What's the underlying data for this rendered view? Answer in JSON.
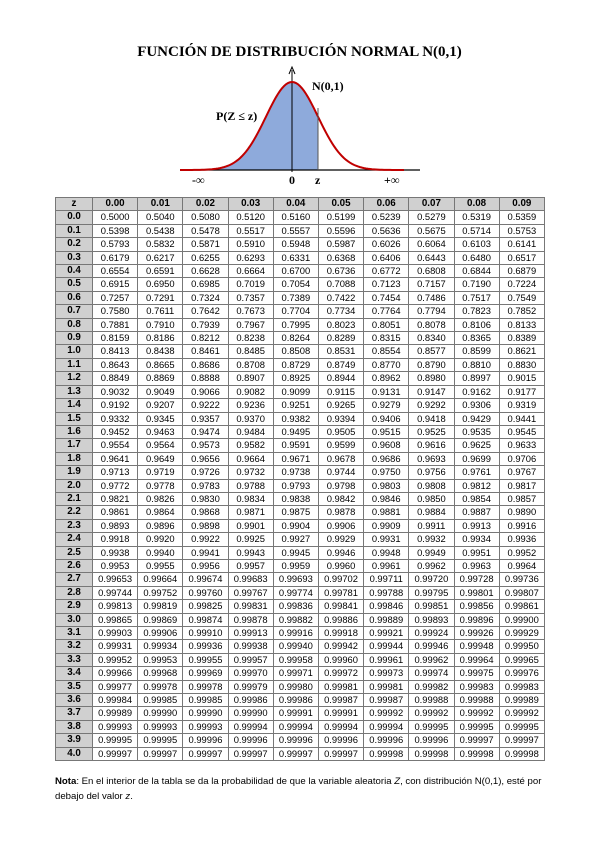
{
  "title": "FUNCIÓN DE DISTRIBUCIÓN NORMAL N(0,1)",
  "figure": {
    "curve_label": "N(0,1)",
    "area_label": "P(Z ≤ z)",
    "minus_inf": "-∞",
    "zero": "0",
    "z": "z",
    "plus_inf": "+∞"
  },
  "table": {
    "header": [
      "z",
      "0.00",
      "0.01",
      "0.02",
      "0.03",
      "0.04",
      "0.05",
      "0.06",
      "0.07",
      "0.08",
      "0.09"
    ],
    "rows": [
      [
        "0.0",
        "0.5000",
        "0.5040",
        "0.5080",
        "0.5120",
        "0.5160",
        "0.5199",
        "0.5239",
        "0.5279",
        "0.5319",
        "0.5359"
      ],
      [
        "0.1",
        "0.5398",
        "0.5438",
        "0.5478",
        "0.5517",
        "0.5557",
        "0.5596",
        "0.5636",
        "0.5675",
        "0.5714",
        "0.5753"
      ],
      [
        "0.2",
        "0.5793",
        "0.5832",
        "0.5871",
        "0.5910",
        "0.5948",
        "0.5987",
        "0.6026",
        "0.6064",
        "0.6103",
        "0.6141"
      ],
      [
        "0.3",
        "0.6179",
        "0.6217",
        "0.6255",
        "0.6293",
        "0.6331",
        "0.6368",
        "0.6406",
        "0.6443",
        "0.6480",
        "0.6517"
      ],
      [
        "0.4",
        "0.6554",
        "0.6591",
        "0.6628",
        "0.6664",
        "0.6700",
        "0.6736",
        "0.6772",
        "0.6808",
        "0.6844",
        "0.6879"
      ],
      [
        "0.5",
        "0.6915",
        "0.6950",
        "0.6985",
        "0.7019",
        "0.7054",
        "0.7088",
        "0.7123",
        "0.7157",
        "0.7190",
        "0.7224"
      ],
      [
        "0.6",
        "0.7257",
        "0.7291",
        "0.7324",
        "0.7357",
        "0.7389",
        "0.7422",
        "0.7454",
        "0.7486",
        "0.7517",
        "0.7549"
      ],
      [
        "0.7",
        "0.7580",
        "0.7611",
        "0.7642",
        "0.7673",
        "0.7704",
        "0.7734",
        "0.7764",
        "0.7794",
        "0.7823",
        "0.7852"
      ],
      [
        "0.8",
        "0.7881",
        "0.7910",
        "0.7939",
        "0.7967",
        "0.7995",
        "0.8023",
        "0.8051",
        "0.8078",
        "0.8106",
        "0.8133"
      ],
      [
        "0.9",
        "0.8159",
        "0.8186",
        "0.8212",
        "0.8238",
        "0.8264",
        "0.8289",
        "0.8315",
        "0.8340",
        "0.8365",
        "0.8389"
      ],
      [
        "1.0",
        "0.8413",
        "0.8438",
        "0.8461",
        "0.8485",
        "0.8508",
        "0.8531",
        "0.8554",
        "0.8577",
        "0.8599",
        "0.8621"
      ],
      [
        "1.1",
        "0.8643",
        "0.8665",
        "0.8686",
        "0.8708",
        "0.8729",
        "0.8749",
        "0.8770",
        "0.8790",
        "0.8810",
        "0.8830"
      ],
      [
        "1.2",
        "0.8849",
        "0.8869",
        "0.8888",
        "0.8907",
        "0.8925",
        "0.8944",
        "0.8962",
        "0.8980",
        "0.8997",
        "0.9015"
      ],
      [
        "1.3",
        "0.9032",
        "0.9049",
        "0.9066",
        "0.9082",
        "0.9099",
        "0.9115",
        "0.9131",
        "0.9147",
        "0.9162",
        "0.9177"
      ],
      [
        "1.4",
        "0.9192",
        "0.9207",
        "0.9222",
        "0.9236",
        "0.9251",
        "0.9265",
        "0.9279",
        "0.9292",
        "0.9306",
        "0.9319"
      ],
      [
        "1.5",
        "0.9332",
        "0.9345",
        "0.9357",
        "0.9370",
        "0.9382",
        "0.9394",
        "0.9406",
        "0.9418",
        "0.9429",
        "0.9441"
      ],
      [
        "1.6",
        "0.9452",
        "0.9463",
        "0.9474",
        "0.9484",
        "0.9495",
        "0.9505",
        "0.9515",
        "0.9525",
        "0.9535",
        "0.9545"
      ],
      [
        "1.7",
        "0.9554",
        "0.9564",
        "0.9573",
        "0.9582",
        "0.9591",
        "0.9599",
        "0.9608",
        "0.9616",
        "0.9625",
        "0.9633"
      ],
      [
        "1.8",
        "0.9641",
        "0.9649",
        "0.9656",
        "0.9664",
        "0.9671",
        "0.9678",
        "0.9686",
        "0.9693",
        "0.9699",
        "0.9706"
      ],
      [
        "1.9",
        "0.9713",
        "0.9719",
        "0.9726",
        "0.9732",
        "0.9738",
        "0.9744",
        "0.9750",
        "0.9756",
        "0.9761",
        "0.9767"
      ],
      [
        "2.0",
        "0.9772",
        "0.9778",
        "0.9783",
        "0.9788",
        "0.9793",
        "0.9798",
        "0.9803",
        "0.9808",
        "0.9812",
        "0.9817"
      ],
      [
        "2.1",
        "0.9821",
        "0.9826",
        "0.9830",
        "0.9834",
        "0.9838",
        "0.9842",
        "0.9846",
        "0.9850",
        "0.9854",
        "0.9857"
      ],
      [
        "2.2",
        "0.9861",
        "0.9864",
        "0.9868",
        "0.9871",
        "0.9875",
        "0.9878",
        "0.9881",
        "0.9884",
        "0.9887",
        "0.9890"
      ],
      [
        "2.3",
        "0.9893",
        "0.9896",
        "0.9898",
        "0.9901",
        "0.9904",
        "0.9906",
        "0.9909",
        "0.9911",
        "0.9913",
        "0.9916"
      ],
      [
        "2.4",
        "0.9918",
        "0.9920",
        "0.9922",
        "0.9925",
        "0.9927",
        "0.9929",
        "0.9931",
        "0.9932",
        "0.9934",
        "0.9936"
      ],
      [
        "2.5",
        "0.9938",
        "0.9940",
        "0.9941",
        "0.9943",
        "0.9945",
        "0.9946",
        "0.9948",
        "0.9949",
        "0.9951",
        "0.9952"
      ],
      [
        "2.6",
        "0.9953",
        "0.9955",
        "0.9956",
        "0.9957",
        "0.9959",
        "0.9960",
        "0.9961",
        "0.9962",
        "0.9963",
        "0.9964"
      ],
      [
        "2.7",
        "0.99653",
        "0.99664",
        "0.99674",
        "0.99683",
        "0.99693",
        "0.99702",
        "0.99711",
        "0.99720",
        "0.99728",
        "0.99736"
      ],
      [
        "2.8",
        "0.99744",
        "0.99752",
        "0.99760",
        "0.99767",
        "0.99774",
        "0.99781",
        "0.99788",
        "0.99795",
        "0.99801",
        "0.99807"
      ],
      [
        "2.9",
        "0.99813",
        "0.99819",
        "0.99825",
        "0.99831",
        "0.99836",
        "0.99841",
        "0.99846",
        "0.99851",
        "0.99856",
        "0.99861"
      ],
      [
        "3.0",
        "0.99865",
        "0.99869",
        "0.99874",
        "0.99878",
        "0.99882",
        "0.99886",
        "0.99889",
        "0.99893",
        "0.99896",
        "0.99900"
      ],
      [
        "3.1",
        "0.99903",
        "0.99906",
        "0.99910",
        "0.99913",
        "0.99916",
        "0.99918",
        "0.99921",
        "0.99924",
        "0.99926",
        "0.99929"
      ],
      [
        "3.2",
        "0.99931",
        "0.99934",
        "0.99936",
        "0.99938",
        "0.99940",
        "0.99942",
        "0.99944",
        "0.99946",
        "0.99948",
        "0.99950"
      ],
      [
        "3.3",
        "0.99952",
        "0.99953",
        "0.99955",
        "0.99957",
        "0.99958",
        "0.99960",
        "0.99961",
        "0.99962",
        "0.99964",
        "0.99965"
      ],
      [
        "3.4",
        "0.99966",
        "0.99968",
        "0.99969",
        "0.99970",
        "0.99971",
        "0.99972",
        "0.99973",
        "0.99974",
        "0.99975",
        "0.99976"
      ],
      [
        "3.5",
        "0.99977",
        "0.99978",
        "0.99978",
        "0.99979",
        "0.99980",
        "0.99981",
        "0.99981",
        "0.99982",
        "0.99983",
        "0.99983"
      ],
      [
        "3.6",
        "0.99984",
        "0.99985",
        "0.99985",
        "0.99986",
        "0.99986",
        "0.99987",
        "0.99987",
        "0.99988",
        "0.99988",
        "0.99989"
      ],
      [
        "3.7",
        "0.99989",
        "0.99990",
        "0.99990",
        "0.99990",
        "0.99991",
        "0.99991",
        "0.99992",
        "0.99992",
        "0.99992",
        "0.99992"
      ],
      [
        "3.8",
        "0.99993",
        "0.99993",
        "0.99993",
        "0.99994",
        "0.99994",
        "0.99994",
        "0.99994",
        "0.99995",
        "0.99995",
        "0.99995"
      ],
      [
        "3.9",
        "0.99995",
        "0.99995",
        "0.99996",
        "0.99996",
        "0.99996",
        "0.99996",
        "0.99996",
        "0.99996",
        "0.99997",
        "0.99997"
      ],
      [
        "4.0",
        "0.99997",
        "0.99997",
        "0.99997",
        "0.99997",
        "0.99997",
        "0.99997",
        "0.99998",
        "0.99998",
        "0.99998",
        "0.99998"
      ]
    ]
  },
  "note": {
    "label": "Nota",
    "text_1": ": En el interior de la tabla se da la probabilidad de que la variable aleatoria ",
    "var_1": "Z",
    "text_2": ", con distribución N(0,1), esté por debajo del valor ",
    "var_2": "z",
    "text_3": "."
  }
}
